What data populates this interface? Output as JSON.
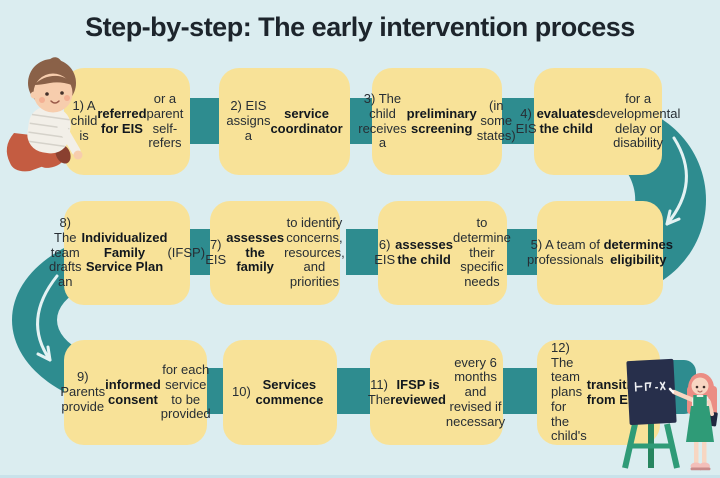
{
  "title": "Step-by-step: The early intervention process",
  "colors": {
    "background": "#DBEDF0",
    "step_box": "#F8E298",
    "connector_teal": "#2E8C8F",
    "title_text": "#1D252C",
    "body_text": "#272E34",
    "arrow_white": "#E4F2F3"
  },
  "icons": {
    "flow_arrow_right_down": "curved-arrow-down-icon",
    "flow_arrow_left_down": "curved-arrow-down-icon",
    "baby": "crawling-baby-illustration",
    "teacher": "teacher-at-chalkboard-illustration"
  },
  "steps": [
    {
      "id": "1",
      "text": "1) A child is referred for EIS or a parent self-refers",
      "segments": [
        {
          "t": "1) A child is ",
          "b": false
        },
        {
          "t": "referred for EIS",
          "b": true
        },
        {
          "t": " or a parent self-refers",
          "b": false
        }
      ]
    },
    {
      "id": "2",
      "text": "2) EIS assigns a service coordinator",
      "segments": [
        {
          "t": "2) EIS assigns a ",
          "b": false
        },
        {
          "t": "service coordinator",
          "b": true
        }
      ]
    },
    {
      "id": "3",
      "text": "3) The child receives a preliminary screening (in some states)",
      "segments": [
        {
          "t": "3) The child receives a ",
          "b": false
        },
        {
          "t": "preliminary screening",
          "b": true
        },
        {
          "t": " (in some states)",
          "b": false
        }
      ]
    },
    {
      "id": "4",
      "text": "4) EIS evaluates the child for a developmental delay or disability",
      "segments": [
        {
          "t": "4) EIS ",
          "b": false
        },
        {
          "t": "evaluates the child",
          "b": true
        },
        {
          "t": " for a developmental delay or disability",
          "b": false
        }
      ]
    },
    {
      "id": "5",
      "text": "5) A team of professionals determines eligibility",
      "segments": [
        {
          "t": "5) A team of professionals ",
          "b": false
        },
        {
          "t": "determines eligibility",
          "b": true
        }
      ]
    },
    {
      "id": "6",
      "text": "6) EIS assesses the child to determine their specific needs",
      "segments": [
        {
          "t": "6) EIS ",
          "b": false
        },
        {
          "t": "assesses the child",
          "b": true
        },
        {
          "t": " to determine their specific needs",
          "b": false
        }
      ]
    },
    {
      "id": "7",
      "text": "7) EIS assesses the family to identify concerns, resources, and priorities",
      "segments": [
        {
          "t": "7) EIS ",
          "b": false
        },
        {
          "t": "assesses the family",
          "b": true
        },
        {
          "t": " to identify concerns, resources, and priorities",
          "b": false
        }
      ]
    },
    {
      "id": "8",
      "text": "8) The team drafts an Individualized Family Service Plan (IFSP)",
      "segments": [
        {
          "t": "8) The team drafts an ",
          "b": false
        },
        {
          "t": "Individualized Family Service Plan",
          "b": true
        },
        {
          "t": " (IFSP)",
          "b": false
        }
      ]
    },
    {
      "id": "9",
      "text": "9) Parents provide informed consent for each service to be provided",
      "segments": [
        {
          "t": "9) Parents provide ",
          "b": false
        },
        {
          "t": "informed consent",
          "b": true
        },
        {
          "t": " for each service to be provided",
          "b": false
        }
      ]
    },
    {
      "id": "10",
      "text": "10) Services commence",
      "segments": [
        {
          "t": "10) ",
          "b": false
        },
        {
          "t": "Services commence",
          "b": true
        }
      ]
    },
    {
      "id": "11",
      "text": "11) The IFSP is reviewed every 6 months and revised if necessary",
      "segments": [
        {
          "t": "11) The ",
          "b": false
        },
        {
          "t": "IFSP is reviewed",
          "b": true
        },
        {
          "t": " every 6 months and revised if necessary",
          "b": false
        }
      ]
    },
    {
      "id": "12",
      "text": "12) The team plans for the child's transition from EIS",
      "segments": [
        {
          "t": "12) The team plans for the child's ",
          "b": false
        },
        {
          "t": "transition from EIS",
          "b": true
        }
      ]
    }
  ]
}
